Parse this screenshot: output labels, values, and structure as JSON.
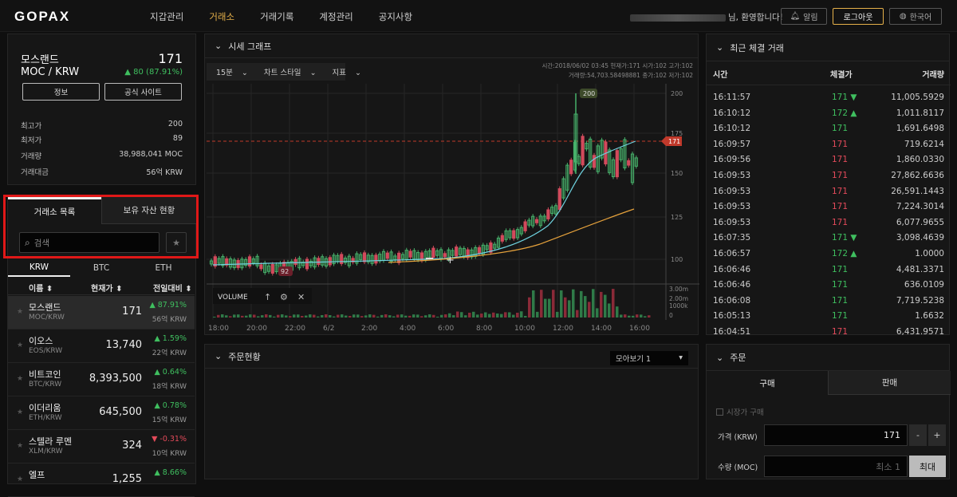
{
  "header": {
    "logo": "GOPAX",
    "nav": [
      "지갑관리",
      "거래소",
      "거래기록",
      "계정관리",
      "공지사항"
    ],
    "active_nav": 1,
    "welcome": "님, 환영합니다!",
    "alarm": "알림",
    "logout": "로그아웃",
    "lang": "한국어"
  },
  "coin": {
    "name": "모스랜드",
    "pair": "MOC / KRW",
    "price": "171",
    "change": "▲ 80 (87.91%)",
    "info_btn": "정보",
    "site_btn": "공식 사이트",
    "stats": [
      {
        "label": "최고가",
        "value": "200"
      },
      {
        "label": "최저가",
        "value": "89"
      },
      {
        "label": "거래량",
        "value": "38,988,041 MOC"
      },
      {
        "label": "거래대금",
        "value": "56억 KRW"
      }
    ]
  },
  "market": {
    "tabs": [
      "거래소 목록",
      "보유 자산 현황"
    ],
    "search_placeholder": "검색",
    "currency_tabs": [
      "KRW",
      "BTC",
      "ETH"
    ],
    "columns": [
      "이름 ⬍",
      "현재가 ⬍",
      "전일대비 ⬍"
    ],
    "rows": [
      {
        "name": "모스랜드",
        "sub": "MOC/KRW",
        "price": "171",
        "change": "▲ 87.91%",
        "vol": "56억 KRW",
        "dir": "up",
        "selected": true
      },
      {
        "name": "이오스",
        "sub": "EOS/KRW",
        "price": "13,740",
        "change": "▲ 1.59%",
        "vol": "22억 KRW",
        "dir": "up"
      },
      {
        "name": "비트코인",
        "sub": "BTC/KRW",
        "price": "8,393,500",
        "change": "▲ 0.64%",
        "vol": "18억 KRW",
        "dir": "up"
      },
      {
        "name": "이더리움",
        "sub": "ETH/KRW",
        "price": "645,500",
        "change": "▲ 0.78%",
        "vol": "15억 KRW",
        "dir": "up"
      },
      {
        "name": "스텔라 루멘",
        "sub": "XLM/KRW",
        "price": "324",
        "change": "▼ -0.31%",
        "vol": "10억 KRW",
        "dir": "dn"
      },
      {
        "name": "엘프",
        "sub": "",
        "price": "1,255",
        "change": "▲ 8.66%",
        "vol": "",
        "dir": "up"
      }
    ]
  },
  "chart": {
    "title": "시세 그래프",
    "interval": "15분",
    "style": "차트 스타일",
    "indicator": "지표",
    "ohlc_line1": "시간:2018/06/02 03:45  현재가:171  시가:102  고가:102",
    "ohlc_line2": "거래량:54,703.58498881  종가:102  저가:102",
    "volume_label": "VOLUME",
    "price_ticks": [
      "200",
      "175",
      "150",
      "125",
      "100"
    ],
    "vol_ticks": [
      "3.00m",
      "2.00m",
      "1000k",
      "0"
    ],
    "time_ticks": [
      "18:00",
      "20:00",
      "22:00",
      "6/2",
      "2:00",
      "4:00",
      "6:00",
      "8:00",
      "10:00",
      "12:00",
      "14:00",
      "16:00"
    ],
    "high_label": "200",
    "low_label": "92",
    "current_label": "171"
  },
  "orders": {
    "title": "주문현황",
    "view": "모아보기 1"
  },
  "trades": {
    "title": "최근 체결 거래",
    "columns": [
      "시간",
      "체결가",
      "거래량"
    ],
    "rows": [
      {
        "t": "16:11:57",
        "p": "171 ▼",
        "q": "11,005.5929",
        "dir": "up"
      },
      {
        "t": "16:10:12",
        "p": "172 ▲",
        "q": "1,011.8117",
        "dir": "up"
      },
      {
        "t": "16:10:12",
        "p": "171",
        "q": "1,691.6498",
        "dir": "up"
      },
      {
        "t": "16:09:57",
        "p": "171",
        "q": "719.6214",
        "dir": "dn"
      },
      {
        "t": "16:09:56",
        "p": "171",
        "q": "1,860.0330",
        "dir": "dn"
      },
      {
        "t": "16:09:53",
        "p": "171",
        "q": "27,862.6636",
        "dir": "dn"
      },
      {
        "t": "16:09:53",
        "p": "171",
        "q": "26,591.1443",
        "dir": "dn"
      },
      {
        "t": "16:09:53",
        "p": "171",
        "q": "7,224.3014",
        "dir": "dn"
      },
      {
        "t": "16:09:53",
        "p": "171",
        "q": "6,077.9655",
        "dir": "dn"
      },
      {
        "t": "16:07:35",
        "p": "171 ▼",
        "q": "3,098.4639",
        "dir": "up"
      },
      {
        "t": "16:06:57",
        "p": "172 ▲",
        "q": "1.0000",
        "dir": "up"
      },
      {
        "t": "16:06:46",
        "p": "171",
        "q": "4,481.3371",
        "dir": "up"
      },
      {
        "t": "16:06:46",
        "p": "171",
        "q": "636.0109",
        "dir": "up"
      },
      {
        "t": "16:06:08",
        "p": "171",
        "q": "7,719.5238",
        "dir": "up"
      },
      {
        "t": "16:05:13",
        "p": "171",
        "q": "1.6632",
        "dir": "up"
      },
      {
        "t": "16:04:51",
        "p": "171",
        "q": "6,431.9571",
        "dir": "dn"
      }
    ]
  },
  "form": {
    "title": "주문",
    "buy": "구매",
    "sell": "판매",
    "market_order": "시장가 구매",
    "price_label": "가격 (KRW)",
    "price_value": "171",
    "qty_label": "수량 (MOC)",
    "qty_min": "최소 1",
    "qty_max": "최대",
    "minus": "-",
    "plus": "+"
  }
}
